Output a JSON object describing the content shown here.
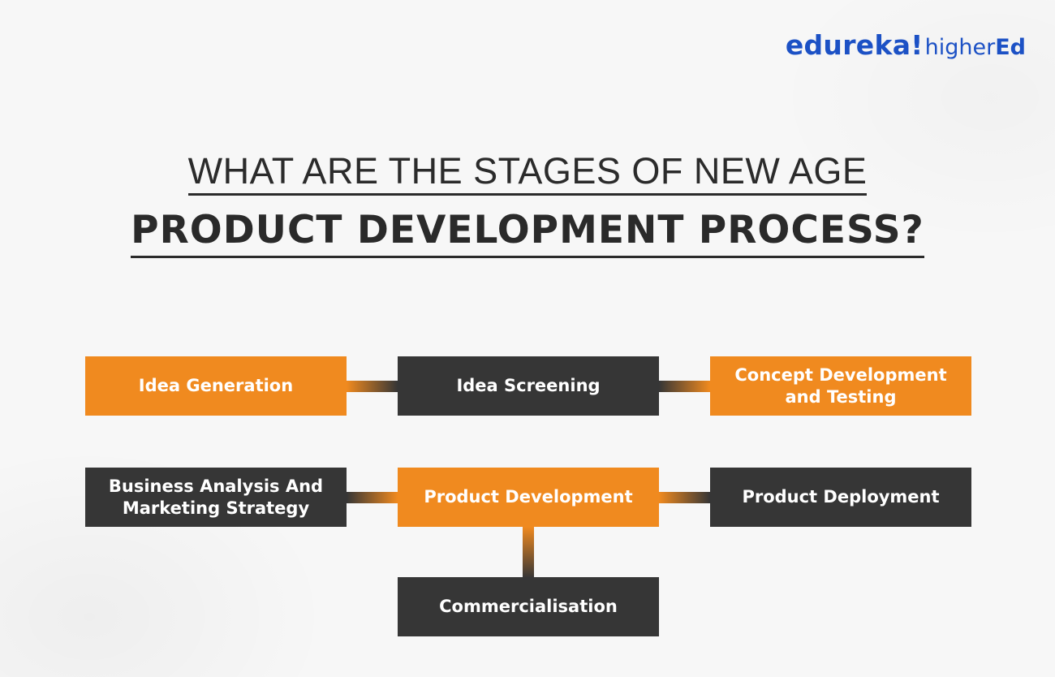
{
  "logo": {
    "main": "edureka!",
    "sub_light": "higher",
    "sub_bold": "Ed"
  },
  "title": {
    "line1": "WHAT ARE THE STAGES OF NEW AGE",
    "line2": "PRODUCT DEVELOPMENT PROCESS?"
  },
  "stages": {
    "idea_generation": "Idea Generation",
    "idea_screening": "Idea Screening",
    "concept_development_line1": "Concept Development",
    "concept_development_line2": "and Testing",
    "business_analysis_line1": "Business Analysis And",
    "business_analysis_line2": "Marketing Strategy",
    "product_development": "Product Development",
    "product_deployment": "Product Deployment",
    "commercialisation": "Commercialisation"
  },
  "colors": {
    "orange": "#f08a1f",
    "dark": "#363636",
    "brand_blue": "#1c51c5",
    "background": "#f7f7f7"
  }
}
